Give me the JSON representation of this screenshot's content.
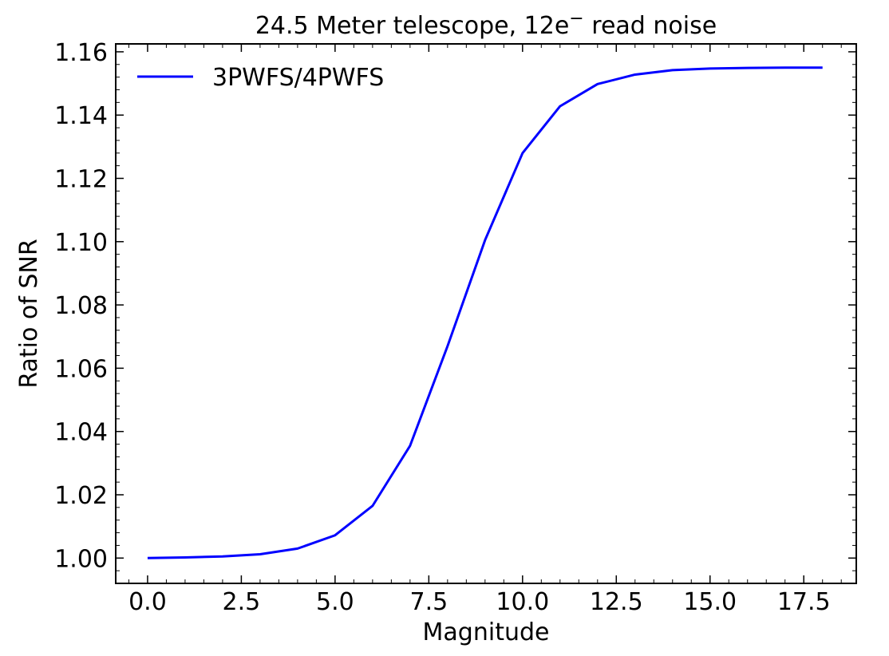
{
  "chart_data": {
    "type": "line",
    "title_main": "24.5 Meter telescope, 12e",
    "title_sup": "−",
    "title_rest": " read noise",
    "xlabel": "Magnitude",
    "ylabel": "Ratio of SNR",
    "xlim": [
      -0.85,
      18.9
    ],
    "ylim": [
      0.992,
      1.1625
    ],
    "xticks": [
      0.0,
      2.5,
      5.0,
      7.5,
      10.0,
      12.5,
      15.0,
      17.5
    ],
    "xtick_labels": [
      "0.0",
      "2.5",
      "5.0",
      "7.5",
      "10.0",
      "12.5",
      "15.0",
      "17.5"
    ],
    "yticks": [
      1.0,
      1.02,
      1.04,
      1.06,
      1.08,
      1.1,
      1.12,
      1.14,
      1.16
    ],
    "ytick_labels": [
      "1.00",
      "1.02",
      "1.04",
      "1.06",
      "1.08",
      "1.10",
      "1.12",
      "1.14",
      "1.16"
    ],
    "legend_position": "top-left",
    "series": [
      {
        "name": "3PWFS/4PWFS",
        "color": "#0000ff",
        "x": [
          0,
          1,
          2,
          3,
          4,
          5,
          6,
          7,
          8,
          9,
          10,
          11,
          12,
          13,
          14,
          15,
          16,
          17,
          18
        ],
        "y": [
          1.0,
          1.0002,
          1.0005,
          1.0012,
          1.003,
          1.0072,
          1.0165,
          1.0355,
          1.067,
          1.1005,
          1.128,
          1.1428,
          1.1498,
          1.1528,
          1.1542,
          1.1547,
          1.1549,
          1.155,
          1.155
        ]
      }
    ]
  }
}
